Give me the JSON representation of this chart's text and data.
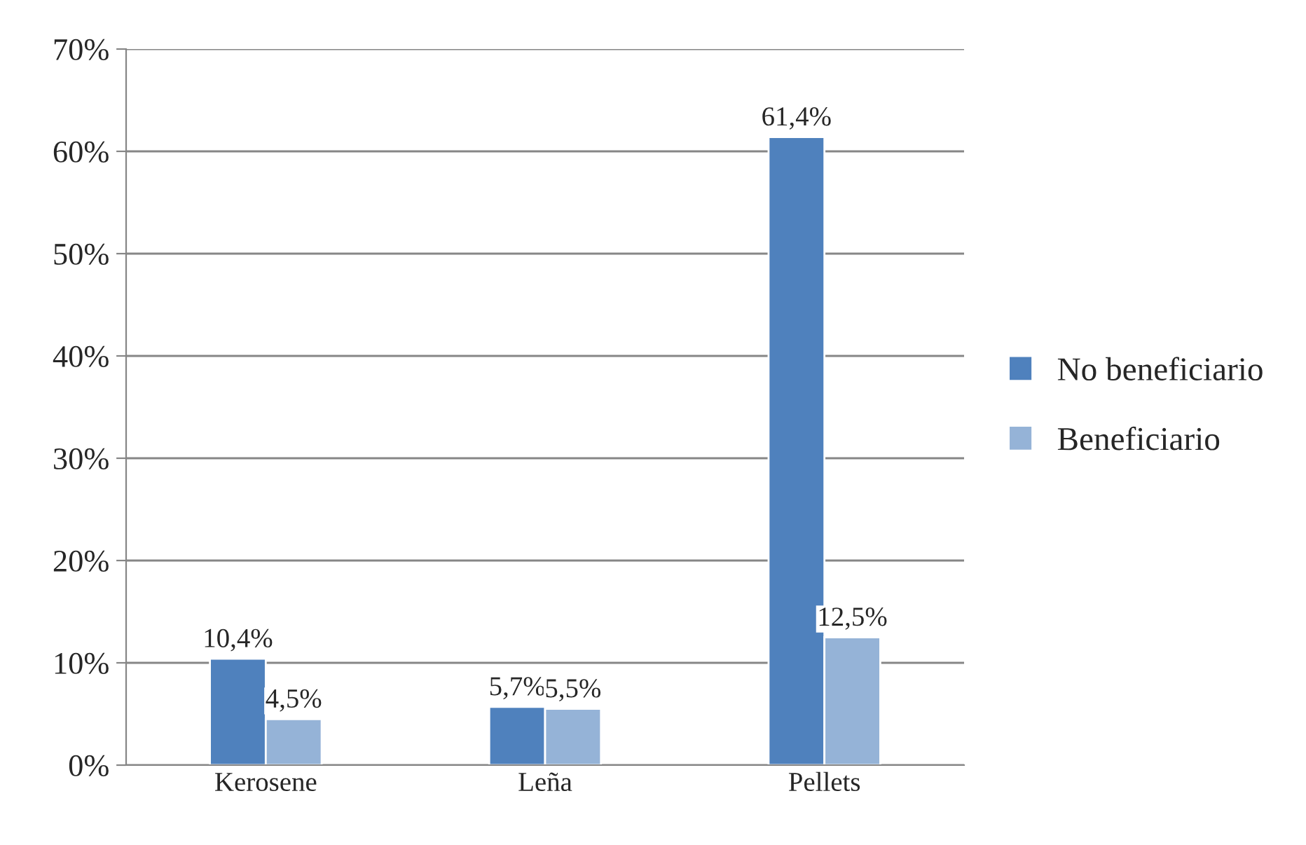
{
  "chart_data": {
    "type": "bar",
    "categories": [
      "Kerosene",
      "Leña",
      "Pellets"
    ],
    "series": [
      {
        "name": "No beneficiario",
        "color": "#4f81bd",
        "values": [
          10.4,
          5.7,
          61.4
        ],
        "value_labels": [
          "10,4%",
          "5,7%",
          "61,4%"
        ]
      },
      {
        "name": "Beneficiario",
        "color": "#95b3d7",
        "values": [
          4.5,
          5.5,
          12.5
        ],
        "value_labels": [
          "4,5%",
          "5,5%",
          "12,5%"
        ]
      }
    ],
    "ylim": [
      0,
      70
    ],
    "yticks": [
      {
        "value": 0,
        "label": "0%"
      },
      {
        "value": 10,
        "label": "10%"
      },
      {
        "value": 20,
        "label": "20%"
      },
      {
        "value": 30,
        "label": "30%"
      },
      {
        "value": 40,
        "label": "40%"
      },
      {
        "value": 50,
        "label": "50%"
      },
      {
        "value": 60,
        "label": "60%"
      },
      {
        "value": 70,
        "label": "70%"
      }
    ],
    "grid": "y",
    "legend": "right"
  }
}
